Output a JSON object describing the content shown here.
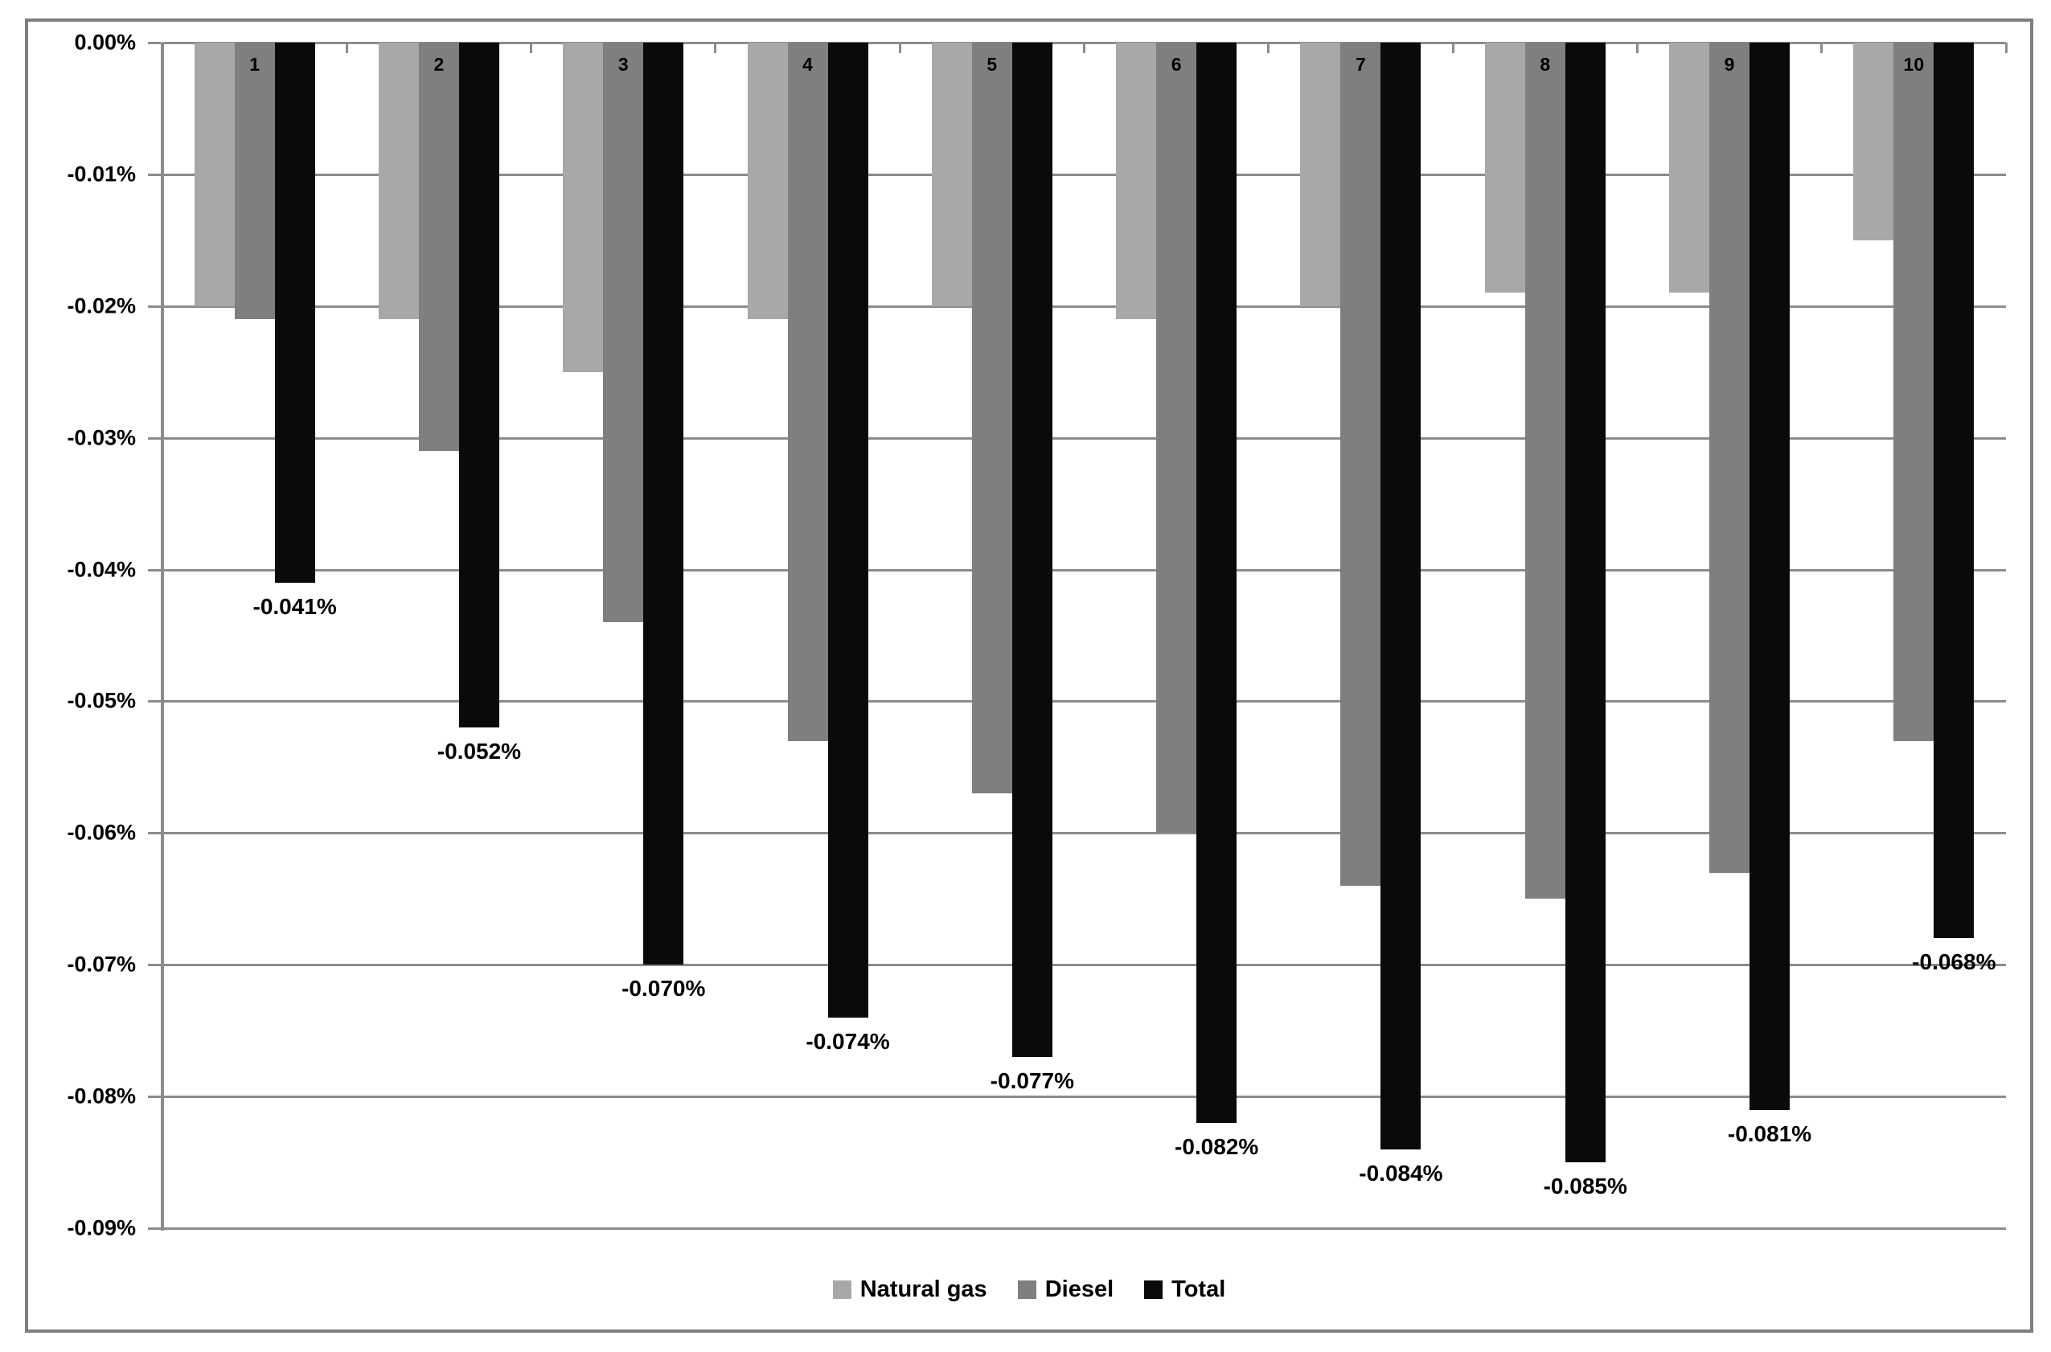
{
  "figure": {
    "background": "#ffffff",
    "border_color": "#7f7f7f",
    "gridline_color": "#8c8c8c"
  },
  "y_axis": {
    "tick_labels": [
      "0.00%",
      "-0.01%",
      "-0.02%",
      "-0.03%",
      "-0.04%",
      "-0.05%",
      "-0.06%",
      "-0.07%",
      "-0.08%",
      "-0.09%"
    ]
  },
  "legend": {
    "position": "bottom",
    "items": [
      {
        "label": "Natural gas",
        "color": "#a8a8a8"
      },
      {
        "label": "Diesel",
        "color": "#7f7f7f"
      },
      {
        "label": "Total",
        "color": "#0a0a0a"
      }
    ]
  },
  "chart_data": {
    "type": "bar",
    "orientation": "vertical",
    "title": "",
    "xlabel": "",
    "ylabel": "",
    "unit": "%",
    "ylim": [
      -0.09,
      0
    ],
    "grid": "horizontal",
    "legend_position": "bottom",
    "categories": [
      "1",
      "2",
      "3",
      "4",
      "5",
      "6",
      "7",
      "8",
      "9",
      "10"
    ],
    "series": [
      {
        "name": "Natural gas",
        "color": "#a8a8a8",
        "values": [
          -0.02,
          -0.021,
          -0.025,
          -0.021,
          -0.02,
          -0.021,
          -0.02,
          -0.019,
          -0.019,
          -0.015
        ]
      },
      {
        "name": "Diesel",
        "color": "#7f7f7f",
        "values": [
          -0.021,
          -0.031,
          -0.044,
          -0.053,
          -0.057,
          -0.06,
          -0.064,
          -0.065,
          -0.063,
          -0.053
        ]
      },
      {
        "name": "Total",
        "color": "#0a0a0a",
        "values": [
          -0.041,
          -0.052,
          -0.07,
          -0.074,
          -0.077,
          -0.082,
          -0.084,
          -0.085,
          -0.081,
          -0.068
        ],
        "data_labels": [
          "-0.041%",
          "-0.052%",
          "-0.070%",
          "-0.074%",
          "-0.077%",
          "-0.082%",
          "-0.084%",
          "-0.085%",
          "-0.081%",
          "-0.068%"
        ]
      }
    ]
  }
}
